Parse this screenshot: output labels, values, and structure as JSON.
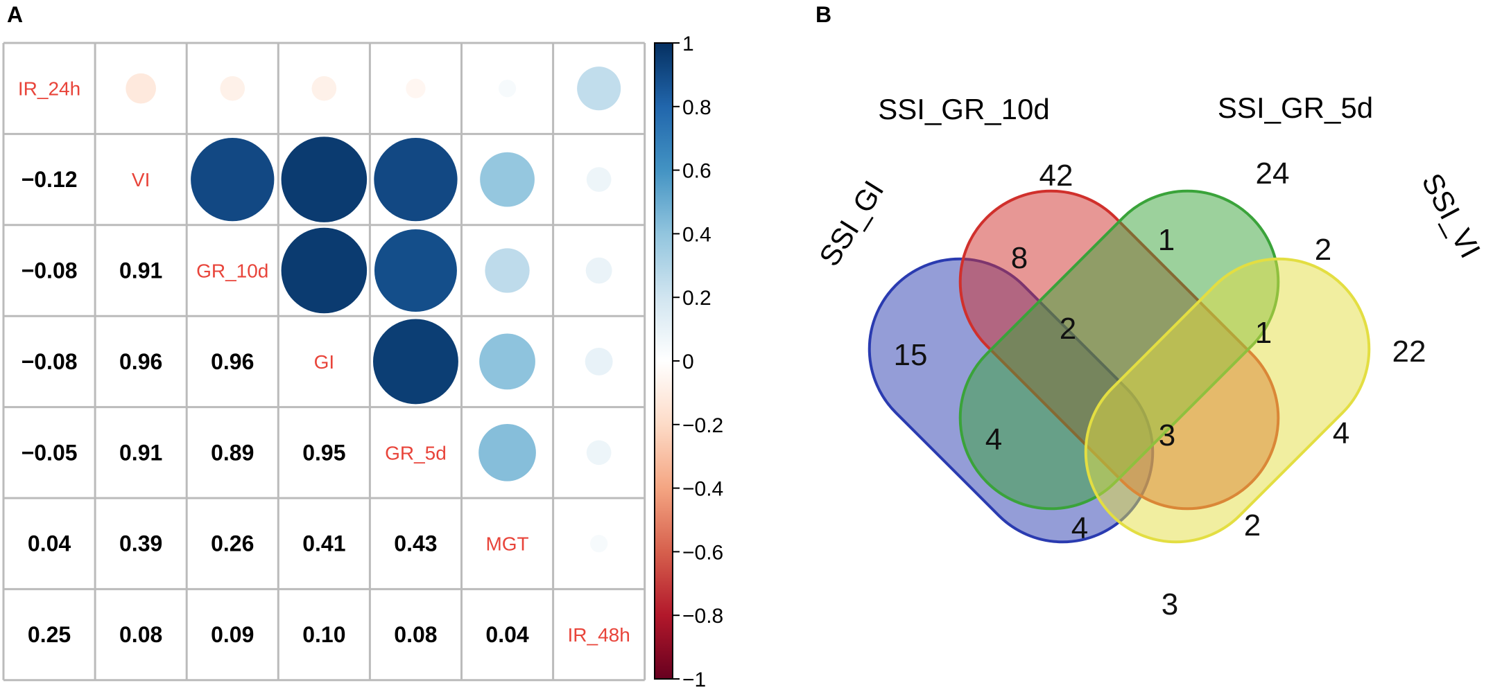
{
  "panels": {
    "a_label": "A",
    "b_label": "B"
  },
  "chart_data": [
    {
      "type": "heatmap",
      "subtype": "correlation-matrix",
      "variables": [
        "IR_24h",
        "VI",
        "GR_10d",
        "GI",
        "GR_5d",
        "MGT",
        "IR_48h"
      ],
      "matrix": [
        [
          1.0,
          -0.12,
          -0.08,
          -0.08,
          -0.05,
          0.04,
          0.25
        ],
        [
          -0.12,
          1.0,
          0.91,
          0.96,
          0.91,
          0.39,
          0.08
        ],
        [
          -0.08,
          0.91,
          1.0,
          0.96,
          0.89,
          0.26,
          0.09
        ],
        [
          -0.08,
          0.96,
          0.96,
          1.0,
          0.95,
          0.41,
          0.1
        ],
        [
          -0.05,
          0.91,
          0.89,
          0.95,
          1.0,
          0.43,
          0.08
        ],
        [
          0.04,
          0.39,
          0.26,
          0.41,
          0.43,
          1.0,
          0.04
        ],
        [
          0.25,
          0.08,
          0.09,
          0.1,
          0.08,
          0.04,
          1.0
        ]
      ],
      "lower_labels": [
        [
          "-0.12"
        ],
        [
          "-0.08",
          "0.91"
        ],
        [
          "-0.08",
          "0.96",
          "0.96"
        ],
        [
          "-0.05",
          "0.91",
          "0.89",
          "0.95"
        ],
        [
          "0.04",
          "0.39",
          "0.26",
          "0.41",
          "0.43"
        ],
        [
          "0.25",
          "0.08",
          "0.09",
          "0.10",
          "0.08",
          "0.04"
        ]
      ],
      "upper": "circles",
      "lower": "numbers",
      "colorbar": {
        "range": [
          -1,
          1
        ],
        "ticks": [
          "1",
          "0.8",
          "0.6",
          "0.4",
          "0.2",
          "0",
          "−0.2",
          "−0.4",
          "−0.6",
          "−0.8",
          "−1"
        ],
        "tick_values": [
          1,
          0.8,
          0.6,
          0.4,
          0.2,
          0,
          -0.2,
          -0.4,
          -0.6,
          -0.8,
          -1
        ],
        "palette": [
          "#67001f",
          "#b2182b",
          "#d6604d",
          "#f4a582",
          "#fddbc7",
          "#ffffff",
          "#d1e5f0",
          "#92c5de",
          "#4393c3",
          "#2166ac",
          "#053061"
        ]
      },
      "colors": {
        "diag_label": "#e8443a",
        "grid": "#bbbbbb"
      }
    },
    {
      "type": "venn",
      "sets": [
        "SSI_GI",
        "SSI_GR_10d",
        "SSI_GR_5d",
        "SSI_VI"
      ],
      "regions": [
        {
          "sets": [
            "SSI_GI"
          ],
          "value": 15
        },
        {
          "sets": [
            "SSI_GR_10d"
          ],
          "value": 42
        },
        {
          "sets": [
            "SSI_GR_5d"
          ],
          "value": 24
        },
        {
          "sets": [
            "SSI_VI"
          ],
          "value": 22
        },
        {
          "sets": [
            "SSI_GI",
            "SSI_GR_10d"
          ],
          "value": 8
        },
        {
          "sets": [
            "SSI_GR_10d",
            "SSI_GR_5d"
          ],
          "value": 1
        },
        {
          "sets": [
            "SSI_GR_5d",
            "SSI_VI"
          ],
          "value": 2
        },
        {
          "sets": [
            "SSI_GI",
            "SSI_GR_10d",
            "SSI_GR_5d"
          ],
          "value": 2
        },
        {
          "sets": [
            "SSI_GR_10d",
            "SSI_GR_5d",
            "SSI_VI"
          ],
          "value": 1
        },
        {
          "sets": [
            "SSI_GI",
            "SSI_GR_5d"
          ],
          "value": 4
        },
        {
          "sets": [
            "SSI_GI",
            "SSI_GR_10d",
            "SSI_GR_5d",
            "SSI_VI"
          ],
          "value": 3
        },
        {
          "sets": [
            "SSI_GR_10d",
            "SSI_VI"
          ],
          "value": 4
        },
        {
          "sets": [
            "SSI_GI",
            "SSI_GR_5d",
            "SSI_VI"
          ],
          "value": 4
        },
        {
          "sets": [
            "SSI_GI",
            "SSI_GR_10d",
            "SSI_VI"
          ],
          "value": 2
        },
        {
          "sets": [
            "SSI_GI",
            "SSI_VI"
          ],
          "value": 3
        }
      ],
      "colors": {
        "SSI_GI": "#2a3bb0",
        "SSI_GR_10d": "#d0302c",
        "SSI_GR_5d": "#3aa33a",
        "SSI_VI": "#e3de42"
      }
    }
  ]
}
